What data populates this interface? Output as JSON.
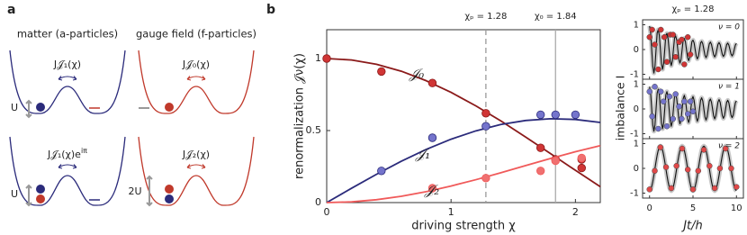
{
  "panel_a": {
    "label": "a",
    "columns": [
      "matter (a-particles)",
      "gauge field (f-particles)"
    ],
    "top": {
      "left_tunneling": "J𝒥₁(χ)",
      "right_tunneling": "J𝒥₀(χ)",
      "left_gap": "U"
    },
    "bottom": {
      "left_tunneling": {
        "text": "J𝒥₁(χ)e",
        "sup": "iπ"
      },
      "right_tunneling": "J𝒥₂(χ)",
      "left_gap": "U",
      "right_gap": "2U"
    }
  },
  "panel_b_label": "b",
  "chart_data": [
    {
      "type": "line",
      "xlabel": "driving strength χ",
      "ylabel": "renormalization 𝒥ν(χ)",
      "xlim": [
        0,
        2.2
      ],
      "ylim": [
        0,
        1.2
      ],
      "xticks": [
        0,
        1,
        2
      ],
      "yticks": [
        0,
        0.5,
        1
      ],
      "x": [
        0,
        0.2,
        0.4,
        0.6,
        0.8,
        1.0,
        1.2,
        1.4,
        1.6,
        1.8,
        2.0,
        2.2
      ],
      "series": [
        {
          "name": "𝒥₀",
          "color": "#8b1a1a",
          "marker_color": "#d03535",
          "values": [
            1,
            0.99,
            0.96,
            0.912,
            0.846,
            0.765,
            0.671,
            0.567,
            0.455,
            0.34,
            0.224,
            0.11
          ],
          "marker_x": [
            0,
            0.44,
            0.85,
            1.28,
            1.72,
            1.84,
            2.05,
            2.05
          ],
          "marker_values": [
            1.0,
            0.91,
            0.83,
            0.62,
            0.38,
            0.3,
            0.3,
            0.24
          ]
        },
        {
          "name": "𝒥₁",
          "color": "#2b2b7b",
          "marker_color": "#7474cc",
          "values": [
            0,
            0.0995,
            0.196,
            0.287,
            0.369,
            0.44,
            0.498,
            0.542,
            0.57,
            0.582,
            0.577,
            0.556
          ],
          "marker_x": [
            0.44,
            0.85,
            1.28,
            1.72,
            1.84,
            2.0
          ],
          "marker_values": [
            0.22,
            0.45,
            0.53,
            0.61,
            0.61,
            0.61
          ]
        },
        {
          "name": "𝒥₂",
          "color": "#f05a5a",
          "marker_color": "#f07070",
          "values": [
            0,
            0.005,
            0.02,
            0.044,
            0.076,
            0.115,
            0.159,
            0.207,
            0.257,
            0.306,
            0.353,
            0.395
          ],
          "marker_x": [
            0.85,
            1.28,
            1.72,
            1.84,
            2.05
          ],
          "marker_values": [
            0.1,
            0.17,
            0.22,
            0.29,
            0.31
          ]
        }
      ],
      "annotations": [
        {
          "x": 1.28,
          "label": "χₚ = 1.28",
          "style": "dashed"
        },
        {
          "x": 1.84,
          "label": "χ₀ = 1.84",
          "style": "solid"
        }
      ]
    },
    {
      "type": "line",
      "title": "χₚ = 1.28",
      "ylabel": "imbalance I",
      "xlabel": "Jt/h",
      "xlim": [
        -0.8,
        10.8
      ],
      "ylim": [
        -1.2,
        1.2
      ],
      "xticks": [
        0,
        5,
        10
      ],
      "yticks": [
        -1,
        0,
        1
      ],
      "curve_color": "#111111",
      "x": [
        0,
        0.125,
        0.25,
        0.375,
        0.5,
        0.625,
        0.75,
        0.875,
        1,
        1.125,
        1.25,
        1.375,
        1.5,
        1.625,
        1.75,
        1.875,
        2,
        2.125,
        2.25,
        2.375,
        2.5,
        2.625,
        2.75,
        2.875,
        3,
        3.125,
        3.25,
        3.375,
        3.5,
        3.625,
        3.75,
        3.875,
        4,
        4.125,
        4.25,
        4.375,
        4.5,
        4.625,
        4.75,
        4.875,
        5,
        5.125,
        5.25,
        5.375,
        5.5,
        5.625,
        5.75,
        5.875,
        6,
        6.125,
        6.25,
        6.375,
        6.5,
        6.625,
        6.75,
        6.875,
        7,
        7.125,
        7.25,
        7.375,
        7.5,
        7.625,
        7.75,
        7.875,
        8,
        8.125,
        8.25,
        8.375,
        8.5,
        8.625,
        8.75,
        8.875,
        9,
        9.125,
        9.25,
        9.375,
        9.5,
        9.625,
        9.75,
        9.875,
        10
      ],
      "panels": [
        {
          "label": "ν = 0",
          "color": "#d03535",
          "values": [
            0.95,
            0.67,
            0,
            -0.67,
            -0.95,
            -0.67,
            0,
            0.67,
            0.8,
            0.57,
            0,
            -0.57,
            -0.8,
            -0.57,
            0,
            0.57,
            0.65,
            0.46,
            0,
            -0.46,
            -0.65,
            -0.46,
            0,
            0.46,
            0.55,
            0.39,
            0,
            -0.39,
            -0.55,
            -0.39,
            0,
            0.39,
            0.45,
            0.32,
            0,
            -0.32,
            -0.45,
            -0.32,
            0,
            0.32,
            0.38,
            0.27,
            0,
            -0.27,
            -0.38,
            -0.27,
            0,
            0.27,
            0.33,
            0.23,
            0,
            -0.23,
            -0.33,
            -0.23,
            0,
            0.23,
            0.3,
            0.21,
            0,
            -0.21,
            -0.3,
            -0.21,
            0,
            0.21,
            0.28,
            0.2,
            0,
            -0.2,
            -0.28,
            -0.2,
            0,
            0.2,
            0.26,
            0.18,
            0,
            -0.18,
            -0.26,
            -0.18,
            0,
            0.18,
            0.25
          ],
          "marker_x": [
            0,
            0.3,
            0.6,
            1.0,
            1.3,
            1.7,
            2.0,
            2.4,
            2.7,
            3.0,
            3.4,
            3.7,
            4.0,
            4.4,
            4.7
          ],
          "marker_values": [
            0.5,
            0.8,
            0.2,
            -0.8,
            0.8,
            0.5,
            -0.5,
            0.6,
            0.6,
            -0.3,
            0.3,
            0.4,
            -0.6,
            0.5,
            -0.2
          ]
        },
        {
          "label": "ν = 1",
          "color": "#7474cc",
          "values": [
            0.9,
            0.64,
            0,
            -0.64,
            -0.9,
            -0.64,
            0,
            0.64,
            0.8,
            0.57,
            0,
            -0.57,
            -0.8,
            -0.57,
            0,
            0.57,
            0.7,
            0.5,
            0,
            -0.5,
            -0.7,
            -0.5,
            0,
            0.5,
            0.6,
            0.42,
            0,
            -0.42,
            -0.6,
            -0.42,
            0,
            0.42,
            0.55,
            0.39,
            0,
            -0.39,
            -0.55,
            -0.39,
            0,
            0.39,
            0.5,
            0.35,
            0,
            -0.35,
            -0.5,
            -0.35,
            0,
            0.35,
            0.45,
            0.32,
            0,
            -0.32,
            -0.45,
            -0.32,
            0,
            0.32,
            0.4,
            0.28,
            0,
            -0.28,
            -0.4,
            -0.28,
            0,
            0.28,
            0.38,
            0.27,
            0,
            -0.27,
            -0.38,
            -0.27,
            0,
            0.27,
            0.35,
            0.25,
            0,
            -0.25,
            -0.35,
            -0.25,
            0,
            0.25,
            0.33
          ],
          "marker_x": [
            0,
            0.3,
            0.6,
            1.0,
            1.3,
            1.6,
            2.0,
            2.3,
            2.7,
            3.0,
            3.4,
            3.7,
            4.0,
            4.4,
            4.7,
            5.0
          ],
          "marker_values": [
            0.7,
            -0.3,
            0.9,
            -0.8,
            0.7,
            0.3,
            -0.7,
            0.5,
            -0.4,
            0.6,
            0.1,
            -0.4,
            0.3,
            -0.2,
            0.3,
            -0.1
          ]
        },
        {
          "label": "ν = 2",
          "color": "#e04848",
          "values": [
            -0.9,
            -0.86,
            -0.73,
            -0.53,
            -0.28,
            0,
            0.28,
            0.53,
            0.73,
            0.86,
            0.9,
            0.86,
            0.73,
            0.53,
            0.28,
            0,
            -0.28,
            -0.53,
            -0.73,
            -0.86,
            -0.9,
            -0.86,
            -0.73,
            -0.53,
            -0.28,
            0,
            0.28,
            0.53,
            0.73,
            0.86,
            0.9,
            0.86,
            0.73,
            0.53,
            0.28,
            0,
            -0.28,
            -0.53,
            -0.73,
            -0.86,
            -0.9,
            -0.86,
            -0.73,
            -0.53,
            -0.28,
            0,
            0.28,
            0.53,
            0.73,
            0.86,
            0.9,
            0.86,
            0.73,
            0.53,
            0.28,
            0,
            -0.28,
            -0.53,
            -0.73,
            -0.86,
            -0.9,
            -0.86,
            -0.73,
            -0.53,
            -0.28,
            0,
            0.28,
            0.53,
            0.73,
            0.86,
            0.9,
            0.86,
            0.73,
            0.53,
            0.28,
            0,
            -0.28,
            -0.53,
            -0.73,
            -0.86,
            -0.9
          ],
          "marker_x": [
            0,
            0.6,
            1.25,
            1.9,
            2.5,
            3.1,
            3.75,
            4.4,
            5.0,
            5.6,
            6.25,
            6.9,
            7.5,
            8.1,
            8.75,
            9.4,
            10
          ],
          "marker_values": [
            -0.85,
            -0.1,
            0.85,
            0.05,
            -0.8,
            0.1,
            0.8,
            -0.05,
            -0.85,
            -0.1,
            0.75,
            0.1,
            -0.8,
            0.0,
            0.8,
            0.0,
            -0.75
          ]
        }
      ]
    }
  ]
}
